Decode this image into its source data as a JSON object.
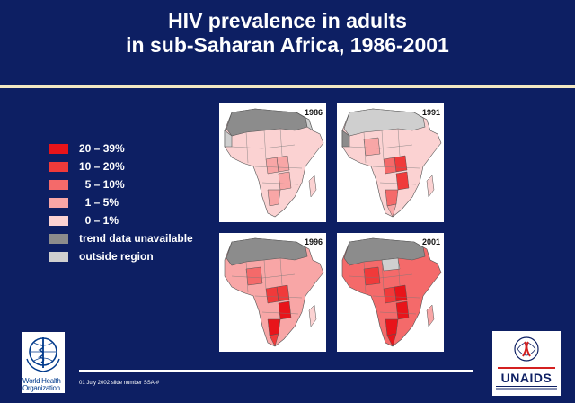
{
  "title": {
    "line1": "HIV prevalence in adults",
    "line2": "in sub-Saharan Africa, 1986-2001"
  },
  "legend": [
    {
      "label": "20 – 39%",
      "color": "#e8141a"
    },
    {
      "label": "10 – 20%",
      "color": "#f03a3a"
    },
    {
      "label": "  5 – 10%",
      "color": "#f46a6a"
    },
    {
      "label": "  1 – 5%",
      "color": "#f8a6a6"
    },
    {
      "label": "  0 – 1%",
      "color": "#fbd2d2"
    },
    {
      "label": "trend data unavailable",
      "color": "#8c8c8c"
    },
    {
      "label": "outside region",
      "color": "#cfcfcf"
    }
  ],
  "maps": [
    {
      "year": "1986"
    },
    {
      "year": "1991"
    },
    {
      "year": "1996"
    },
    {
      "year": "2001"
    }
  ],
  "logos": {
    "who_line1": "World Health",
    "who_line2": "Organization",
    "unaids_wordmark": "UNAIDS"
  },
  "footnote": "01 July 2002 slide number SSA-#"
}
